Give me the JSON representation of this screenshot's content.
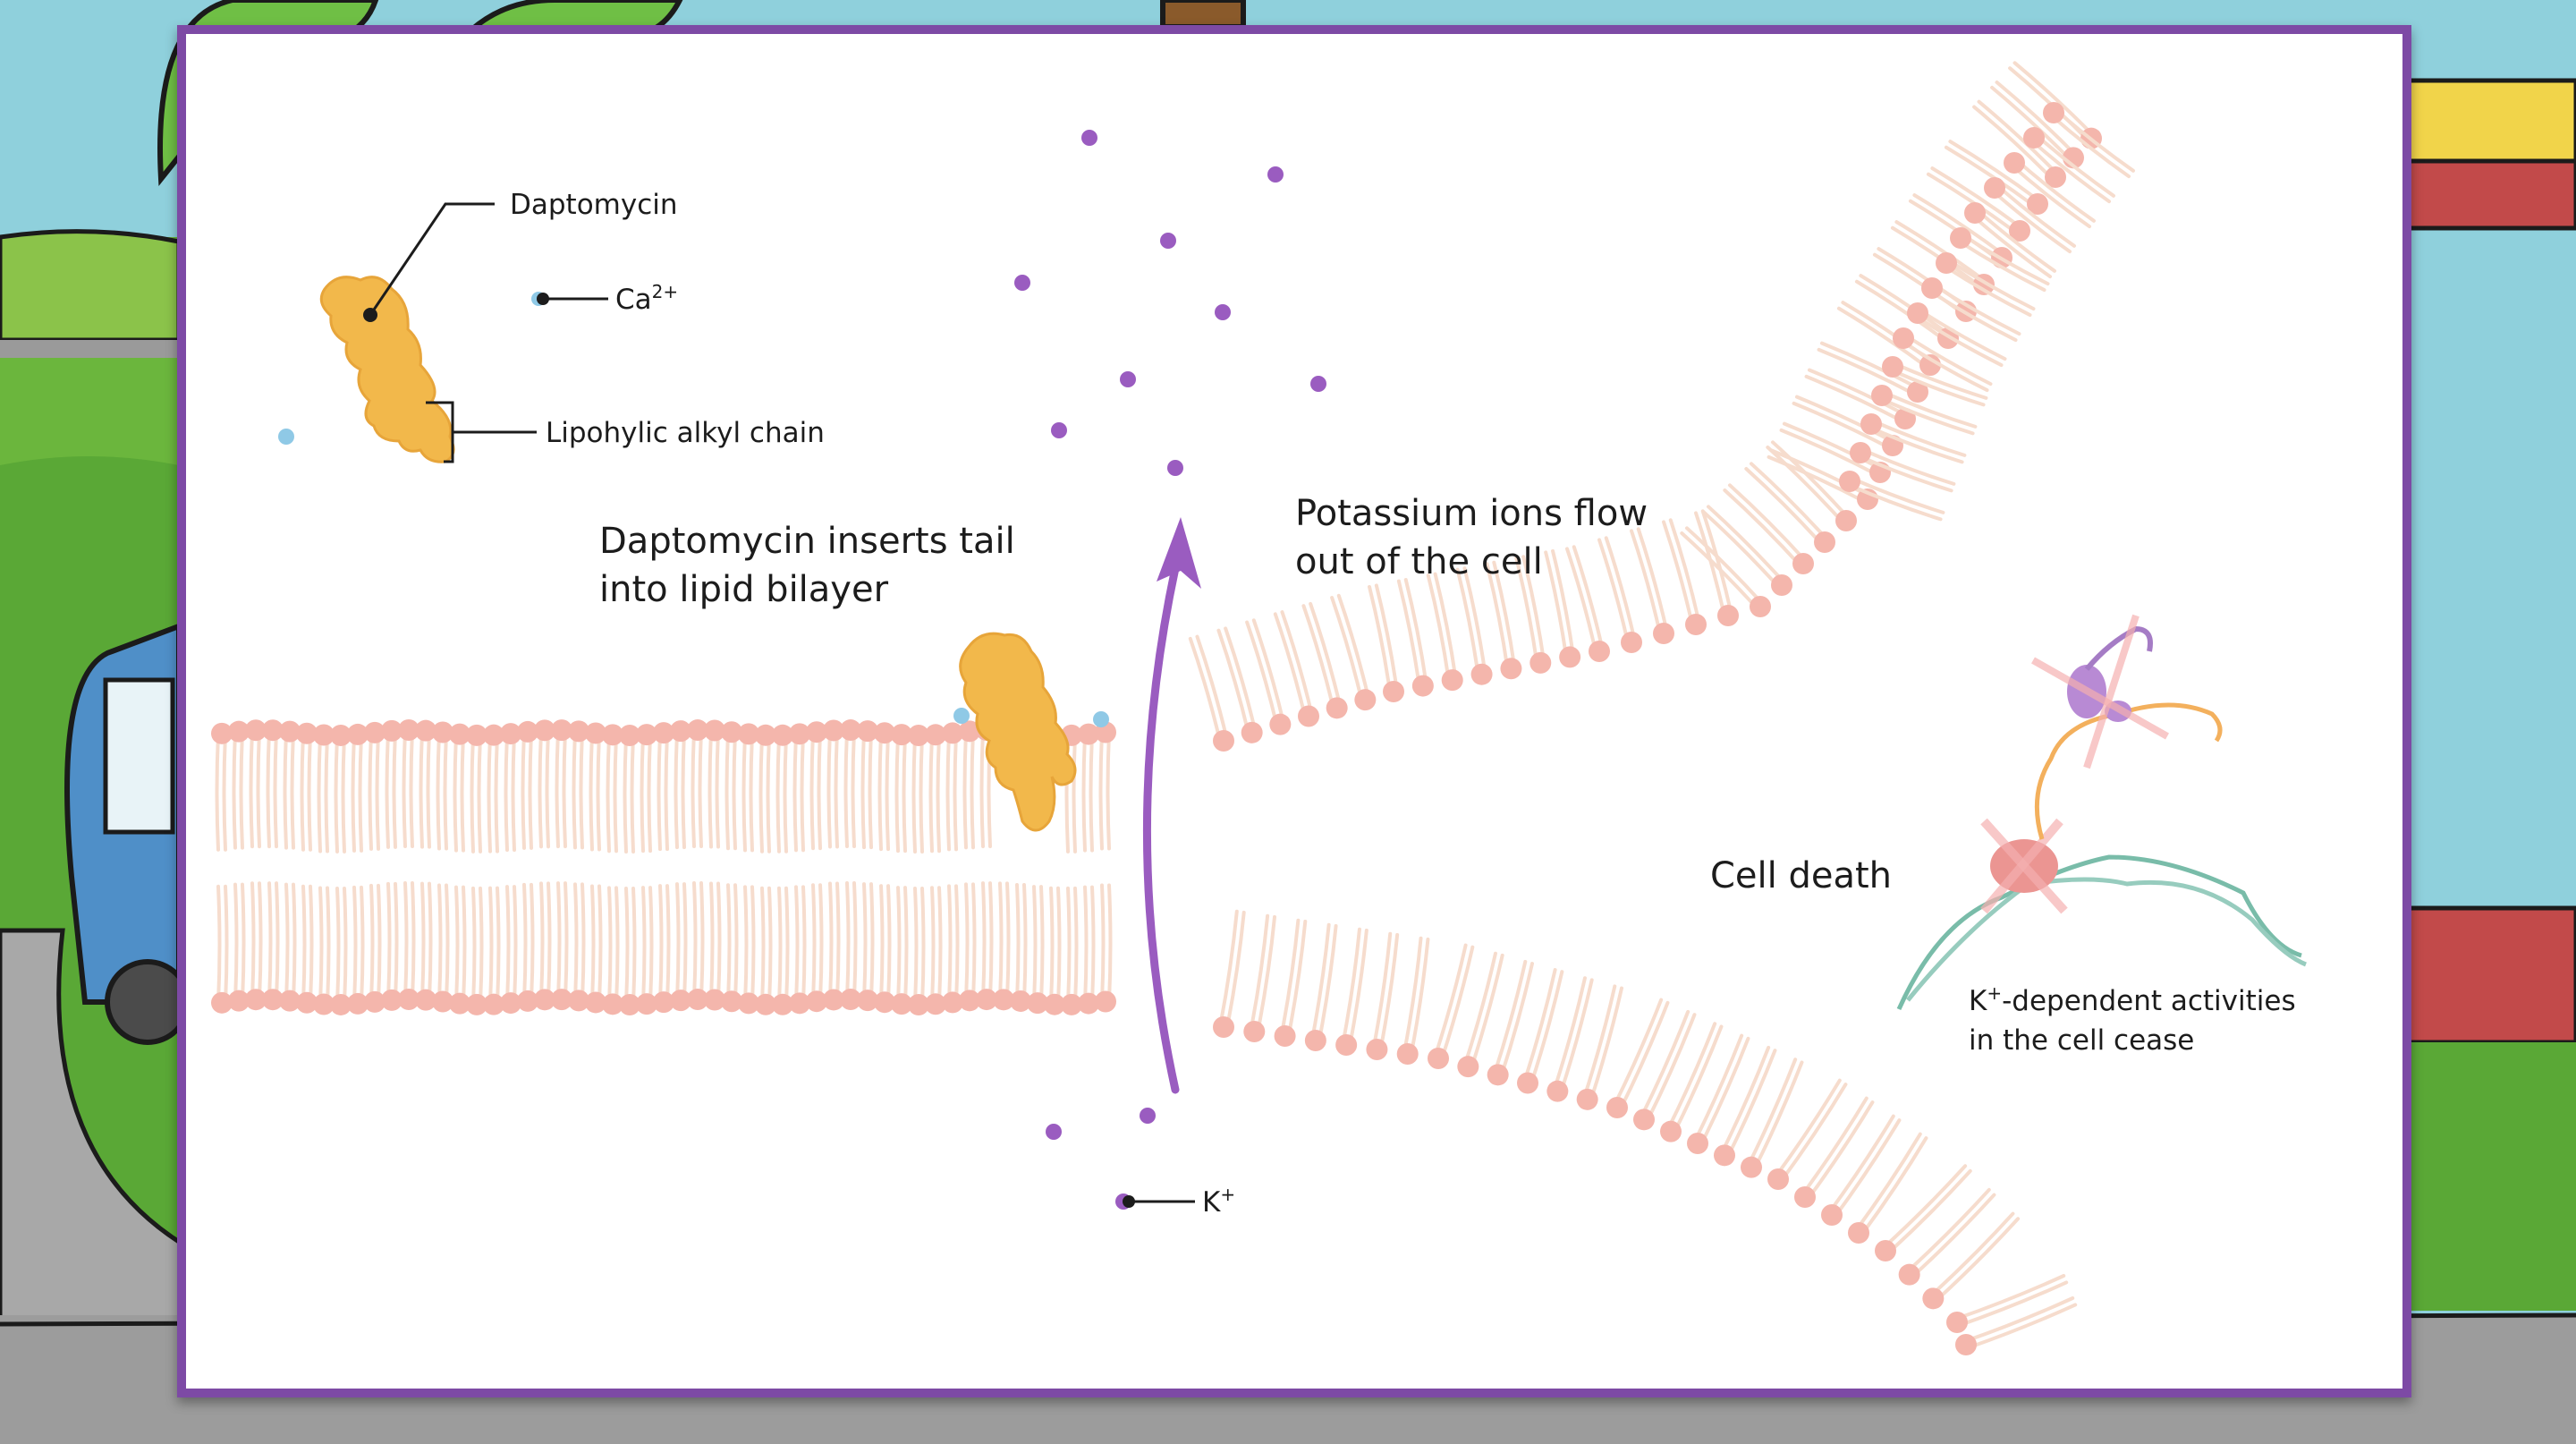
{
  "labels": {
    "daptomycin": "Daptomycin",
    "calcium_base": "Ca",
    "calcium_sup": "2+",
    "alkyl_chain": "Lipohylic alkyl chain",
    "inserts_line1": "Daptomycin inserts tail",
    "inserts_line2": "into lipid bilayer",
    "potassium_line1": "Potassium ions flow",
    "potassium_line2": "out of the cell",
    "cell_death": "Cell death",
    "dependent_sup": "+",
    "dependent_line1_k": "K",
    "dependent_line1_rest": "-dependent activities",
    "dependent_line2": "in the cell cease",
    "potassium_base": "K",
    "potassium_sup": "+"
  },
  "colors": {
    "frame_border": "#7d4aa5",
    "daptomycin": "#f2b84b",
    "calcium_ion": "#8fc9e6",
    "potassium_ion": "#9a5cc0",
    "lipid_head": "#f4b6ac",
    "lipid_tail": "#f6dccd",
    "arrow": "#9a5cc0"
  }
}
